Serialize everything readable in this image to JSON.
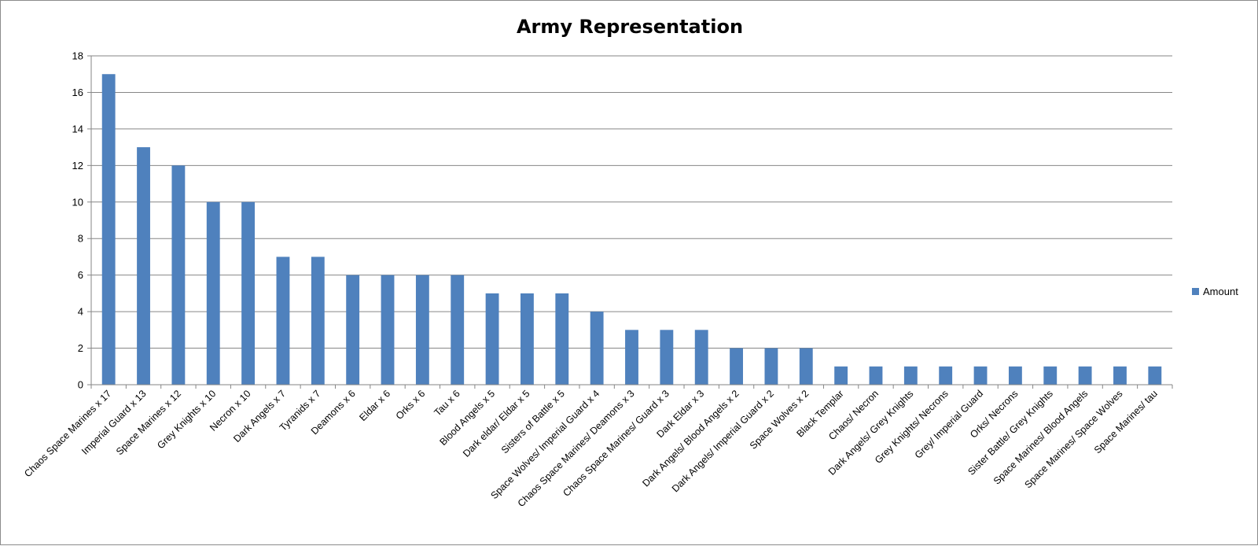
{
  "chart_data": {
    "type": "bar",
    "title": "Army Representation",
    "xlabel": "",
    "ylabel": "",
    "ylim": [
      0,
      18
    ],
    "yticks": [
      0,
      2,
      4,
      6,
      8,
      10,
      12,
      14,
      16,
      18
    ],
    "grid": true,
    "legend_position": "right",
    "categories": [
      "Chaos Space Marines x 17",
      "Imperial Guard x 13",
      "Space Marines x 12",
      "Grey Knights x 10",
      "Necron x 10",
      "Dark Angels x 7",
      "Tyranids x 7",
      "Deamons x 6",
      "Eldar x 6",
      "Orks x 6",
      "Tau x 6",
      "Blood Angels x 5",
      "Dark eldar/ Eldar x 5",
      "Sisters of Battle x 5",
      "Space Wolves/ Imperial Guard x 4",
      "Chaos Space Marines/ Deamons x 3",
      "Chaos Space Marines/ Guard x 3",
      "Dark Eldar x 3",
      "Dark Angels/ Blood Angels x 2",
      "Dark Angels/ Imperial Guard x 2",
      "Space Wolves x 2",
      "Black Templar",
      "Chaos/ Necron",
      "Dark Angels/ Grey Knights",
      "Grey Knights/ Necrons",
      "Grey/ Imperial Guard",
      "Orks/ Necrons",
      "Sister Battle/ Grey Knights",
      "Space Marines/ Blood Angels",
      "Space Marines/ Space Wolves",
      "Space Marines/ tau"
    ],
    "series": [
      {
        "name": "Amount",
        "color": "#4f81bd",
        "values": [
          17,
          13,
          12,
          10,
          10,
          7,
          7,
          6,
          6,
          6,
          6,
          5,
          5,
          5,
          4,
          3,
          3,
          3,
          2,
          2,
          2,
          1,
          1,
          1,
          1,
          1,
          1,
          1,
          1,
          1,
          1
        ]
      }
    ]
  }
}
